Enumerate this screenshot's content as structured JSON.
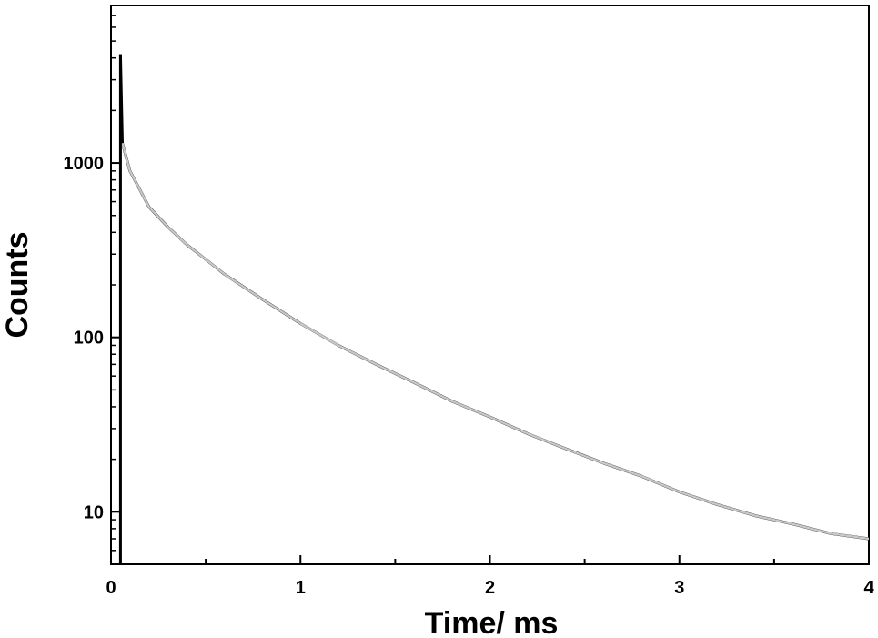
{
  "chart_data": {
    "type": "line",
    "title": "",
    "xlabel": "Time/ ms",
    "ylabel": "Counts",
    "xlim": [
      0,
      4
    ],
    "ylim": [
      5,
      8000
    ],
    "y_scale": "log",
    "grid": false,
    "legend": "none",
    "x_ticks": [
      "0",
      "1",
      "2",
      "3",
      "4"
    ],
    "y_ticks": [
      "10",
      "100",
      "1000"
    ],
    "series": [
      {
        "role": "measured decay",
        "color": "#000000",
        "x": [
          0.05,
          0.06,
          0.1,
          0.2,
          0.3,
          0.4,
          0.5,
          0.6,
          0.8,
          1.0,
          1.2,
          1.4,
          1.6,
          1.8,
          2.0,
          2.2,
          2.4,
          2.6,
          2.8,
          3.0,
          3.2,
          3.4,
          3.6,
          3.8,
          4.0
        ],
        "values": [
          4200,
          1300,
          900,
          560,
          430,
          340,
          280,
          230,
          165,
          120,
          90,
          70,
          55,
          43,
          35,
          28,
          23,
          19,
          16,
          13,
          11,
          9.5,
          8.5,
          7.5,
          7
        ]
      },
      {
        "role": "fit",
        "color": "#c8c8c8",
        "x": [
          0.06,
          0.1,
          0.2,
          0.3,
          0.4,
          0.5,
          0.6,
          0.8,
          1.0,
          1.2,
          1.4,
          1.6,
          1.8,
          2.0,
          2.2,
          2.4,
          2.6,
          2.8,
          3.0,
          3.2,
          3.4,
          3.6,
          3.8,
          4.0
        ],
        "values": [
          1300,
          900,
          560,
          430,
          340,
          280,
          230,
          165,
          120,
          90,
          70,
          55,
          43,
          35,
          28,
          23,
          19,
          16,
          13,
          11,
          9.5,
          8.5,
          7.5,
          7
        ]
      }
    ]
  }
}
